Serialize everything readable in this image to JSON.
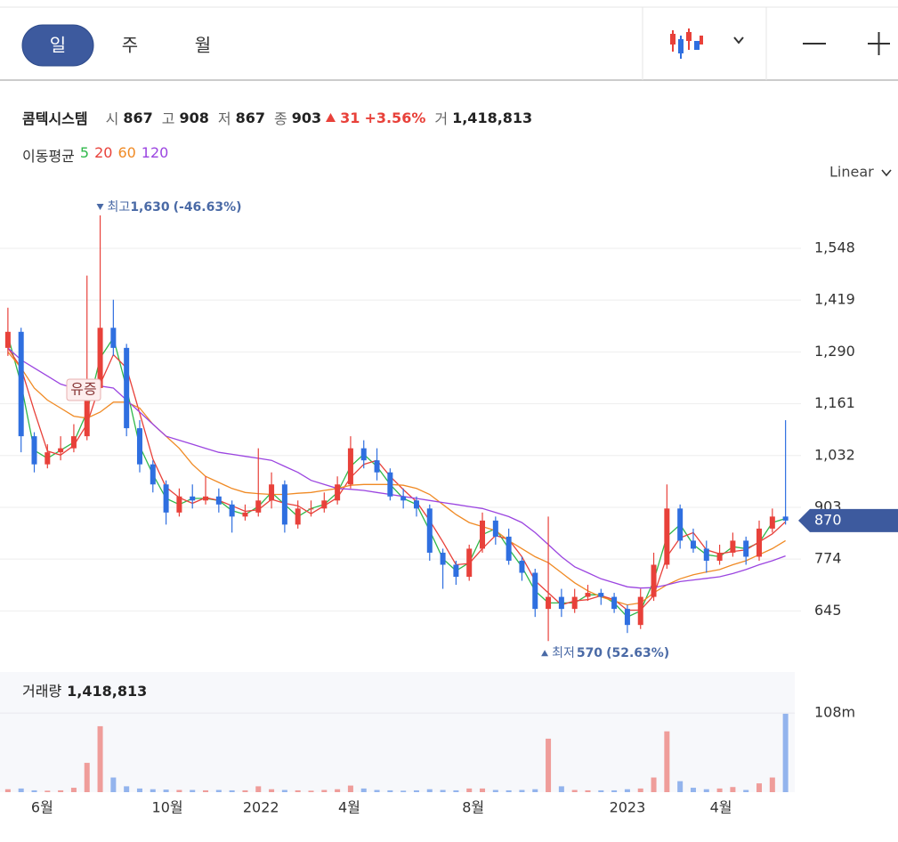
{
  "toolbar": {
    "tabs": [
      "일",
      "주",
      "월"
    ]
  },
  "chart_data": {
    "type": "candlestick",
    "name": "콤텍시스템",
    "quote": [
      {
        "label": "시",
        "value": 867
      },
      {
        "label": "고",
        "value": 908
      },
      {
        "label": "저",
        "value": 867
      },
      {
        "label": "종",
        "value": 903
      }
    ],
    "change": {
      "value": 31,
      "percent": "+3.56%"
    },
    "volume_quote": {
      "label": "거",
      "value": 1418813,
      "value_label": "1,418,813"
    },
    "ma_title": "이동평균",
    "scale_mode": "Linear",
    "up_color": "#e8413a",
    "down_color": "#2f6fe0",
    "candles": [
      [
        1300,
        1400,
        1280,
        1340
      ],
      [
        1340,
        1350,
        1040,
        1080
      ],
      [
        1080,
        1090,
        990,
        1010
      ],
      [
        1010,
        1060,
        1000,
        1040
      ],
      [
        1040,
        1080,
        1020,
        1050
      ],
      [
        1050,
        1110,
        1040,
        1080
      ],
      [
        1080,
        1480,
        1070,
        1200
      ],
      [
        1200,
        1630,
        1190,
        1350
      ],
      [
        1350,
        1420,
        1280,
        1300
      ],
      [
        1300,
        1310,
        1080,
        1100
      ],
      [
        1100,
        1120,
        990,
        1010
      ],
      [
        1010,
        1020,
        940,
        960
      ],
      [
        960,
        970,
        860,
        890
      ],
      [
        890,
        950,
        880,
        930
      ],
      [
        930,
        960,
        900,
        920
      ],
      [
        920,
        980,
        910,
        930
      ],
      [
        930,
        950,
        890,
        910
      ],
      [
        910,
        920,
        840,
        880
      ],
      [
        880,
        910,
        870,
        890
      ],
      [
        890,
        1050,
        880,
        920
      ],
      [
        920,
        990,
        900,
        960
      ],
      [
        960,
        970,
        840,
        860
      ],
      [
        860,
        920,
        850,
        900
      ],
      [
        900,
        920,
        880,
        900
      ],
      [
        900,
        940,
        890,
        920
      ],
      [
        920,
        980,
        910,
        960
      ],
      [
        960,
        1080,
        950,
        1050
      ],
      [
        1050,
        1070,
        1000,
        1020
      ],
      [
        1020,
        1050,
        970,
        990
      ],
      [
        990,
        1000,
        920,
        930
      ],
      [
        930,
        950,
        900,
        920
      ],
      [
        920,
        930,
        880,
        900
      ],
      [
        900,
        910,
        770,
        790
      ],
      [
        790,
        800,
        700,
        760
      ],
      [
        760,
        770,
        710,
        730
      ],
      [
        730,
        810,
        720,
        800
      ],
      [
        800,
        890,
        790,
        870
      ],
      [
        870,
        880,
        810,
        830
      ],
      [
        830,
        850,
        760,
        770
      ],
      [
        770,
        780,
        720,
        740
      ],
      [
        740,
        750,
        630,
        650
      ],
      [
        650,
        880,
        570,
        680
      ],
      [
        680,
        700,
        630,
        650
      ],
      [
        650,
        700,
        640,
        680
      ],
      [
        680,
        710,
        670,
        690
      ],
      [
        690,
        700,
        660,
        680
      ],
      [
        680,
        690,
        640,
        650
      ],
      [
        650,
        660,
        590,
        610
      ],
      [
        610,
        700,
        600,
        680
      ],
      [
        680,
        790,
        670,
        760
      ],
      [
        760,
        960,
        750,
        900
      ],
      [
        900,
        910,
        800,
        820
      ],
      [
        820,
        850,
        790,
        800
      ],
      [
        800,
        820,
        740,
        770
      ],
      [
        770,
        810,
        760,
        790
      ],
      [
        790,
        840,
        780,
        820
      ],
      [
        820,
        830,
        760,
        780
      ],
      [
        780,
        870,
        770,
        850
      ],
      [
        850,
        900,
        840,
        880
      ],
      [
        880,
        1120,
        860,
        870
      ]
    ],
    "ma_series": [
      {
        "name": "5",
        "color": "#2fb84a",
        "values": [
          1330,
          1210,
          1045,
          1025,
          1045,
          1065,
          1140,
          1275,
          1325,
          1200,
          1055,
          985,
          925,
          910,
          925,
          925,
          920,
          895,
          885,
          905,
          940,
          910,
          880,
          900,
          910,
          940,
          1005,
          1035,
          1005,
          960,
          925,
          910,
          845,
          775,
          745,
          765,
          835,
          850,
          800,
          755,
          695,
          665,
          665,
          665,
          685,
          685,
          665,
          630,
          645,
          720,
          830,
          860,
          810,
          785,
          780,
          805,
          800,
          815,
          865,
          875
        ]
      },
      {
        "name": "20",
        "color": "#e8413a",
        "values": [
          1300,
          1250,
          1143,
          1043,
          1033,
          1057,
          1110,
          1210,
          1283,
          1250,
          1137,
          1023,
          953,
          927,
          913,
          927,
          920,
          907,
          893,
          897,
          923,
          913,
          907,
          887,
          907,
          927,
          977,
          1010,
          1020,
          980,
          947,
          917,
          870,
          817,
          760,
          763,
          800,
          833,
          823,
          780,
          720,
          690,
          660,
          670,
          673,
          683,
          673,
          647,
          647,
          683,
          780,
          827,
          840,
          797,
          787,
          793,
          797,
          817,
          837,
          867
        ]
      },
      {
        "name": "60",
        "color": "#f08a24",
        "values": [
          1290,
          1250,
          1200,
          1170,
          1150,
          1130,
          1125,
          1140,
          1165,
          1165,
          1150,
          1110,
          1080,
          1050,
          1010,
          980,
          965,
          950,
          940,
          937,
          935,
          935,
          938,
          940,
          945,
          950,
          958,
          960,
          960,
          960,
          958,
          950,
          935,
          910,
          885,
          865,
          855,
          845,
          820,
          800,
          780,
          765,
          740,
          715,
          695,
          680,
          670,
          660,
          665,
          690,
          710,
          725,
          735,
          742,
          748,
          760,
          770,
          785,
          800,
          820
        ]
      },
      {
        "name": "120",
        "color": "#9b45e0",
        "values": [
          1300,
          1270,
          1250,
          1230,
          1210,
          1200,
          1195,
          1205,
          1200,
          1170,
          1140,
          1110,
          1080,
          1070,
          1060,
          1050,
          1040,
          1035,
          1030,
          1025,
          1020,
          1005,
          990,
          970,
          960,
          950,
          948,
          945,
          940,
          935,
          930,
          925,
          920,
          915,
          910,
          905,
          900,
          890,
          880,
          865,
          840,
          810,
          780,
          755,
          740,
          725,
          715,
          705,
          702,
          703,
          710,
          718,
          722,
          726,
          730,
          738,
          748,
          760,
          770,
          782
        ]
      }
    ],
    "xlim": [
      -0.6,
      59.7
    ],
    "xticks": [
      {
        "value": 2.6,
        "label": "6월"
      },
      {
        "value": 12.1,
        "label": "10월"
      },
      {
        "value": 19.2,
        "label": "2022"
      },
      {
        "value": 25.9,
        "label": "4월"
      },
      {
        "value": 35.3,
        "label": "8월"
      },
      {
        "value": 47.0,
        "label": "2023"
      },
      {
        "value": 54.1,
        "label": "4월"
      }
    ],
    "ylim": [
      504,
      1723
    ],
    "yticks": [
      645,
      774,
      903,
      {
        "value": 1032,
        "label": "1,032"
      },
      {
        "value": 1161,
        "label": "1,161"
      },
      {
        "value": 1290,
        "label": "1,290"
      },
      {
        "value": 1419,
        "label": "1,419"
      },
      {
        "value": 1548,
        "label": "1,548"
      }
    ],
    "grid": true,
    "current_price": 870,
    "max_annotation": {
      "label": "최고",
      "value": 1630,
      "value_label": "1,630",
      "change": "(-46.63%)"
    },
    "min_annotation": {
      "label": "최저",
      "value": 570,
      "change": "(52.63%)"
    },
    "event_label": "유증",
    "volume": {
      "title": "거래량",
      "total": 1418813,
      "total_label": "1,418,813",
      "values": [
        4000000,
        5000000,
        2500000,
        2000000,
        2500000,
        6000000,
        40000000,
        90000000,
        20000000,
        8000000,
        5000000,
        4000000,
        3500000,
        3000000,
        3000000,
        2500000,
        3000000,
        2500000,
        2500000,
        8000000,
        4000000,
        3000000,
        2500000,
        2000000,
        3000000,
        4000000,
        9000000,
        5000000,
        3000000,
        2500000,
        2000000,
        2500000,
        4000000,
        3000000,
        2500000,
        5000000,
        5000000,
        3000000,
        2500000,
        3000000,
        4000000,
        73000000,
        8000000,
        3000000,
        2500000,
        2500000,
        2500000,
        4000000,
        5000000,
        20000000,
        83000000,
        15000000,
        6000000,
        4000000,
        5000000,
        7000000,
        3000000,
        12000000,
        20000000,
        107000000
      ],
      "ylim": [
        0,
        164000000
      ],
      "yticks": [
        {
          "value": 108000000,
          "label": "108m"
        }
      ]
    }
  }
}
